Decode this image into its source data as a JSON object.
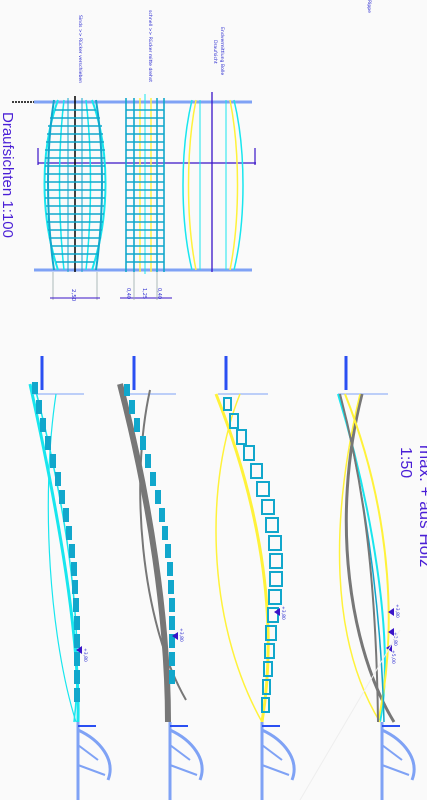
{
  "headings": {
    "top_view": "Draufsichten 1:100",
    "scale_side": "1:50",
    "title_partial": "max. + aus Holz"
  },
  "plan_notes": {
    "top_small": "Rippe",
    "left_note": "Sinds >> Rücker verschieben",
    "middle_note": "schnell >> Rücker mitte drehst",
    "right_note": "Endvermittlung Bolle",
    "right_note_2": "Draufsicht"
  },
  "dimensions": {
    "left_span": "2,50",
    "mid_a": "0,40",
    "mid_b": "1,25",
    "mid_c": "0,40"
  },
  "levels": {
    "lvl_top": "+5,00",
    "lvl_1": "+3,80",
    "lvl_2": "+3,80",
    "lvl_3": "+3,80",
    "lvl_4a": "+3,80",
    "lvl_4b": "+3,80"
  },
  "colors": {
    "cyan": "#18e6ee",
    "teal": "#11a7cc",
    "yellow": "#fff23a",
    "grey": "#777777",
    "blue": "#2a4ff2",
    "lightblue": "#7fa2f5",
    "violet": "#4a1fd6"
  }
}
